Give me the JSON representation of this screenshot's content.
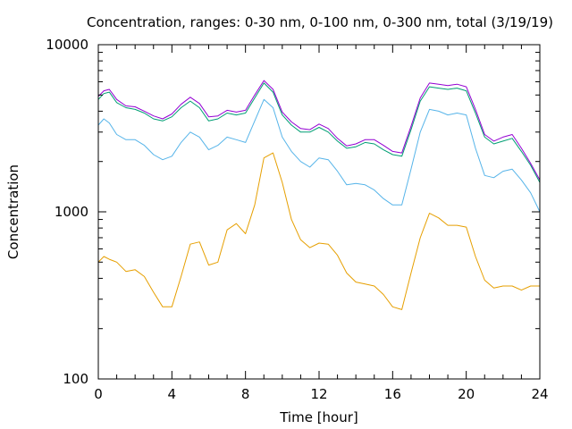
{
  "chart_data": {
    "type": "line",
    "title": "Concentration, ranges: 0-30 nm, 0-100 nm, 0-300 nm, total (3/19/19)",
    "xlabel": "Time [hour]",
    "ylabel": "Concentration",
    "xlim": [
      0,
      24
    ],
    "ylim": [
      100,
      10000
    ],
    "yscale": "log",
    "grid": false,
    "legend": "none",
    "x_ticks": [
      0,
      4,
      8,
      12,
      16,
      20,
      24
    ],
    "x_tick_labels": [
      "0",
      "4",
      "8",
      "12",
      "16",
      "20",
      "24"
    ],
    "y_ticks": [
      100,
      1000,
      10000
    ],
    "y_tick_labels": [
      "100",
      "1000",
      "10000"
    ],
    "series": [
      {
        "color": "#e69f00",
        "x": [
          0,
          0.3,
          0.6,
          1,
          1.5,
          2,
          2.5,
          3,
          3.5,
          4,
          4.5,
          5,
          5.5,
          6,
          6.5,
          7,
          7.5,
          8,
          8.5,
          9,
          9.5,
          10,
          10.5,
          11,
          11.5,
          12,
          12.5,
          13,
          13.5,
          14,
          14.5,
          15,
          15.5,
          16,
          16.5,
          17,
          17.5,
          18,
          18.5,
          19,
          19.5,
          20,
          20.5,
          21,
          21.5,
          22,
          22.5,
          23,
          23.5,
          24
        ],
        "y": [
          500,
          540,
          520,
          500,
          440,
          450,
          410,
          330,
          270,
          270,
          410,
          640,
          660,
          480,
          500,
          780,
          850,
          740,
          1100,
          2100,
          2250,
          1500,
          900,
          680,
          610,
          650,
          640,
          550,
          430,
          380,
          370,
          360,
          320,
          270,
          260,
          430,
          700,
          980,
          920,
          830,
          830,
          810,
          540,
          390,
          350,
          360,
          360,
          340,
          360,
          360
        ]
      },
      {
        "color": "#56b4e9",
        "x": [
          0,
          0.3,
          0.6,
          1,
          1.5,
          2,
          2.5,
          3,
          3.5,
          4,
          4.5,
          5,
          5.5,
          6,
          6.5,
          7,
          7.5,
          8,
          8.5,
          9,
          9.5,
          10,
          10.5,
          11,
          11.5,
          12,
          12.5,
          13,
          13.5,
          14,
          14.5,
          15,
          15.5,
          16,
          16.5,
          17,
          17.5,
          18,
          18.5,
          19,
          19.5,
          20,
          20.5,
          21,
          21.5,
          22,
          22.5,
          23,
          23.5,
          24
        ],
        "y": [
          3300,
          3600,
          3400,
          2900,
          2700,
          2700,
          2500,
          2200,
          2050,
          2150,
          2600,
          3000,
          2800,
          2350,
          2500,
          2800,
          2700,
          2600,
          3500,
          4700,
          4200,
          2800,
          2300,
          2000,
          1850,
          2100,
          2050,
          1750,
          1450,
          1480,
          1450,
          1350,
          1200,
          1100,
          1100,
          1800,
          3000,
          4100,
          4000,
          3800,
          3900,
          3800,
          2400,
          1650,
          1600,
          1750,
          1800,
          1550,
          1300,
          1000
        ]
      },
      {
        "color": "#009e73",
        "x": [
          0,
          0.3,
          0.6,
          1,
          1.5,
          2,
          2.5,
          3,
          3.5,
          4,
          4.5,
          5,
          5.5,
          6,
          6.5,
          7,
          7.5,
          8,
          8.5,
          9,
          9.5,
          10,
          10.5,
          11,
          11.5,
          12,
          12.5,
          13,
          13.5,
          14,
          14.5,
          15,
          15.5,
          16,
          16.5,
          17,
          17.5,
          18,
          18.5,
          19,
          19.5,
          20,
          20.5,
          21,
          21.5,
          22,
          22.5,
          23,
          23.5,
          24
        ],
        "y": [
          4700,
          5100,
          5200,
          4500,
          4200,
          4100,
          3900,
          3600,
          3500,
          3700,
          4200,
          4600,
          4200,
          3500,
          3600,
          3900,
          3800,
          3900,
          4800,
          5900,
          5200,
          3800,
          3300,
          3000,
          3000,
          3200,
          3000,
          2650,
          2400,
          2450,
          2600,
          2550,
          2350,
          2200,
          2150,
          3100,
          4600,
          5600,
          5500,
          5400,
          5500,
          5300,
          3900,
          2800,
          2550,
          2650,
          2750,
          2300,
          1900,
          1500
        ]
      },
      {
        "color": "#9400d3",
        "x": [
          0,
          0.3,
          0.6,
          1,
          1.5,
          2,
          2.5,
          3,
          3.5,
          4,
          4.5,
          5,
          5.5,
          6,
          6.5,
          7,
          7.5,
          8,
          8.5,
          9,
          9.5,
          10,
          10.5,
          11,
          11.5,
          12,
          12.5,
          13,
          13.5,
          14,
          14.5,
          15,
          15.5,
          16,
          16.5,
          17,
          17.5,
          18,
          18.5,
          19,
          19.5,
          20,
          20.5,
          21,
          21.5,
          22,
          22.5,
          23,
          23.5,
          24
        ],
        "y": [
          4900,
          5300,
          5400,
          4700,
          4300,
          4250,
          4000,
          3750,
          3600,
          3850,
          4400,
          4850,
          4450,
          3700,
          3750,
          4050,
          3950,
          4050,
          5000,
          6100,
          5400,
          3950,
          3450,
          3150,
          3100,
          3350,
          3150,
          2750,
          2480,
          2550,
          2700,
          2700,
          2500,
          2300,
          2250,
          3250,
          4800,
          5900,
          5800,
          5700,
          5800,
          5600,
          4100,
          2900,
          2650,
          2800,
          2900,
          2400,
          1950,
          1550
        ]
      }
    ]
  }
}
